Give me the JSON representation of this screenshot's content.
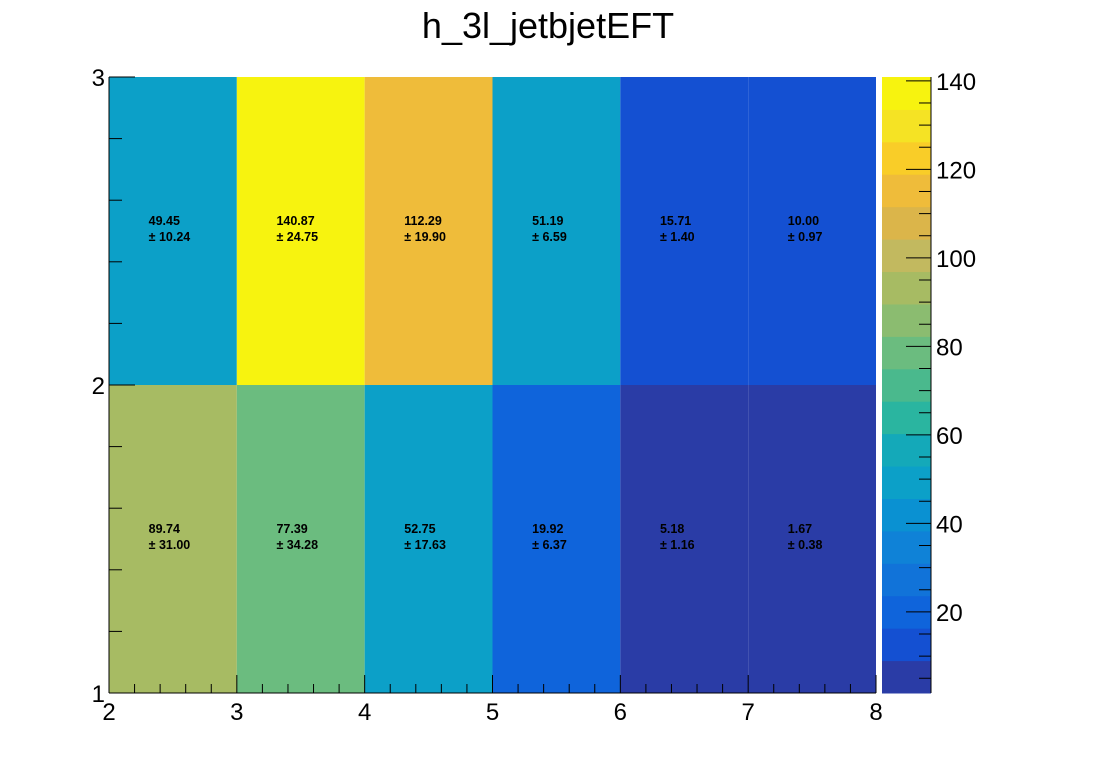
{
  "chart_data": {
    "type": "heatmap",
    "title": "h_3l_jetbjetEFT",
    "xlabel": "",
    "ylabel": "",
    "x_edges": [
      2,
      3,
      4,
      5,
      6,
      7,
      8
    ],
    "y_edges": [
      1,
      2,
      3
    ],
    "xlim": [
      2,
      8
    ],
    "ylim": [
      1,
      3
    ],
    "x_tick_labels": [
      "2",
      "3",
      "4",
      "5",
      "6",
      "7",
      "8"
    ],
    "y_tick_labels": [
      "1",
      "2",
      "3"
    ],
    "values": [
      [
        89.74,
        77.39,
        52.75,
        19.92,
        5.18,
        1.67
      ],
      [
        49.45,
        140.87,
        112.29,
        51.19,
        15.71,
        10.0
      ]
    ],
    "errors": [
      [
        31.0,
        34.28,
        17.63,
        6.37,
        1.16,
        0.38
      ],
      [
        10.24,
        24.75,
        19.9,
        6.59,
        1.4,
        0.97
      ]
    ],
    "value_labels": [
      [
        "89.74",
        "77.39",
        "52.75",
        "19.92",
        "5.18",
        "1.67"
      ],
      [
        "49.45",
        "140.87",
        "112.29",
        "51.19",
        "15.71",
        "10.00"
      ]
    ],
    "error_labels": [
      [
        "± 31.00",
        "± 34.28",
        "± 17.63",
        "± 6.37",
        "± 1.16",
        "± 0.38"
      ],
      [
        "± 10.24",
        "± 24.75",
        "± 19.90",
        "± 6.59",
        "± 1.40",
        "± 0.97"
      ]
    ],
    "colorbar": {
      "zlim": [
        1.67,
        140.87
      ],
      "tick_values": [
        20,
        40,
        60,
        80,
        100,
        120,
        140
      ],
      "tick_labels": [
        "20",
        "40",
        "60",
        "80",
        "100",
        "120",
        "140"
      ],
      "palette": [
        "#2a3ca6",
        "#1450d2",
        "#0f64db",
        "#1173d9",
        "#0f82d7",
        "#0a91d2",
        "#0ca0c8",
        "#14a9b9",
        "#2ab5a0",
        "#4ab98d",
        "#6bbc7f",
        "#8bbc70",
        "#a7bb63",
        "#c2b95f",
        "#dbb54a",
        "#efbc3a",
        "#f9cd28",
        "#f5e324",
        "#f7f30f"
      ]
    },
    "grid": false,
    "legend": "none"
  }
}
